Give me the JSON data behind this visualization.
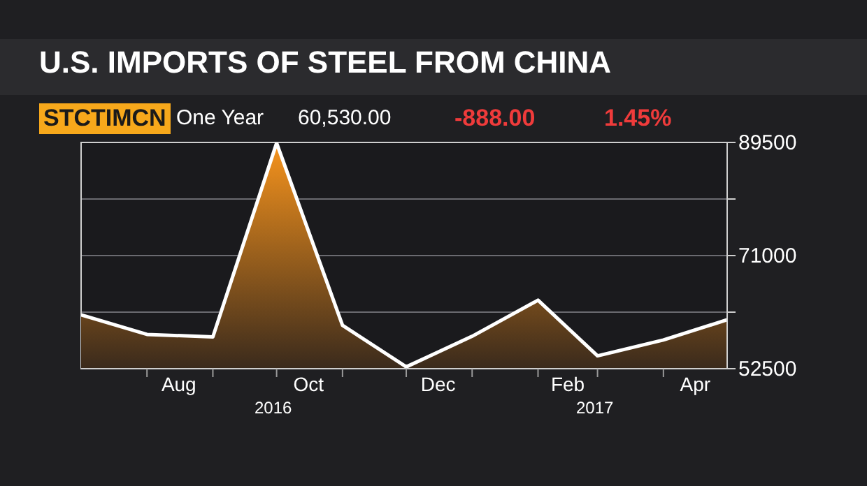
{
  "chart_data": {
    "type": "area",
    "title": "U.S. IMPORTS OF STEEL FROM CHINA",
    "annotations": [
      "STCTIMCN",
      "One Year",
      "60,530.00",
      "-888.00",
      "1.45%",
      "2016",
      "2017"
    ],
    "x": [
      "2016-07",
      "2016-08",
      "2016-09",
      "2016-10",
      "2016-11",
      "2016-12",
      "2017-01",
      "2017-02",
      "2017-03",
      "2017-04",
      "2017-05"
    ],
    "series": [
      {
        "color": "#ffffff",
        "values": [
          61300,
          58100,
          57700,
          89400,
          59600,
          52800,
          57800,
          63700,
          54600,
          57200,
          60500
        ]
      }
    ],
    "xlim": [
      "2016-07",
      "2017-05"
    ],
    "xticks": [
      {
        "value": "2016-08",
        "label": null
      },
      {
        "value": "2016-08-16",
        "label": "Aug"
      },
      {
        "value": "2016-09",
        "label": null
      },
      {
        "value": "2016-10",
        "label": null
      },
      {
        "value": "2016-10-16",
        "label": "Oct"
      },
      {
        "value": "2016-11",
        "label": null
      },
      {
        "value": "2016-12",
        "label": null
      },
      {
        "value": "2016-12-16",
        "label": "Dec"
      },
      {
        "value": "2017-01",
        "label": null
      },
      {
        "value": "2017-02",
        "label": null
      },
      {
        "value": "2017-02-15",
        "label": "Feb"
      },
      {
        "value": "2017-03",
        "label": null
      },
      {
        "value": "2017-04",
        "label": null
      },
      {
        "value": "2017-04-16",
        "label": "Apr"
      }
    ],
    "ylim": [
      52500,
      89500
    ],
    "yticks": [
      52500,
      {
        "value": 61750,
        "label": null
      },
      71000,
      {
        "value": 80250,
        "label": null
      },
      89500
    ],
    "grid": "y",
    "legend": false
  }
}
